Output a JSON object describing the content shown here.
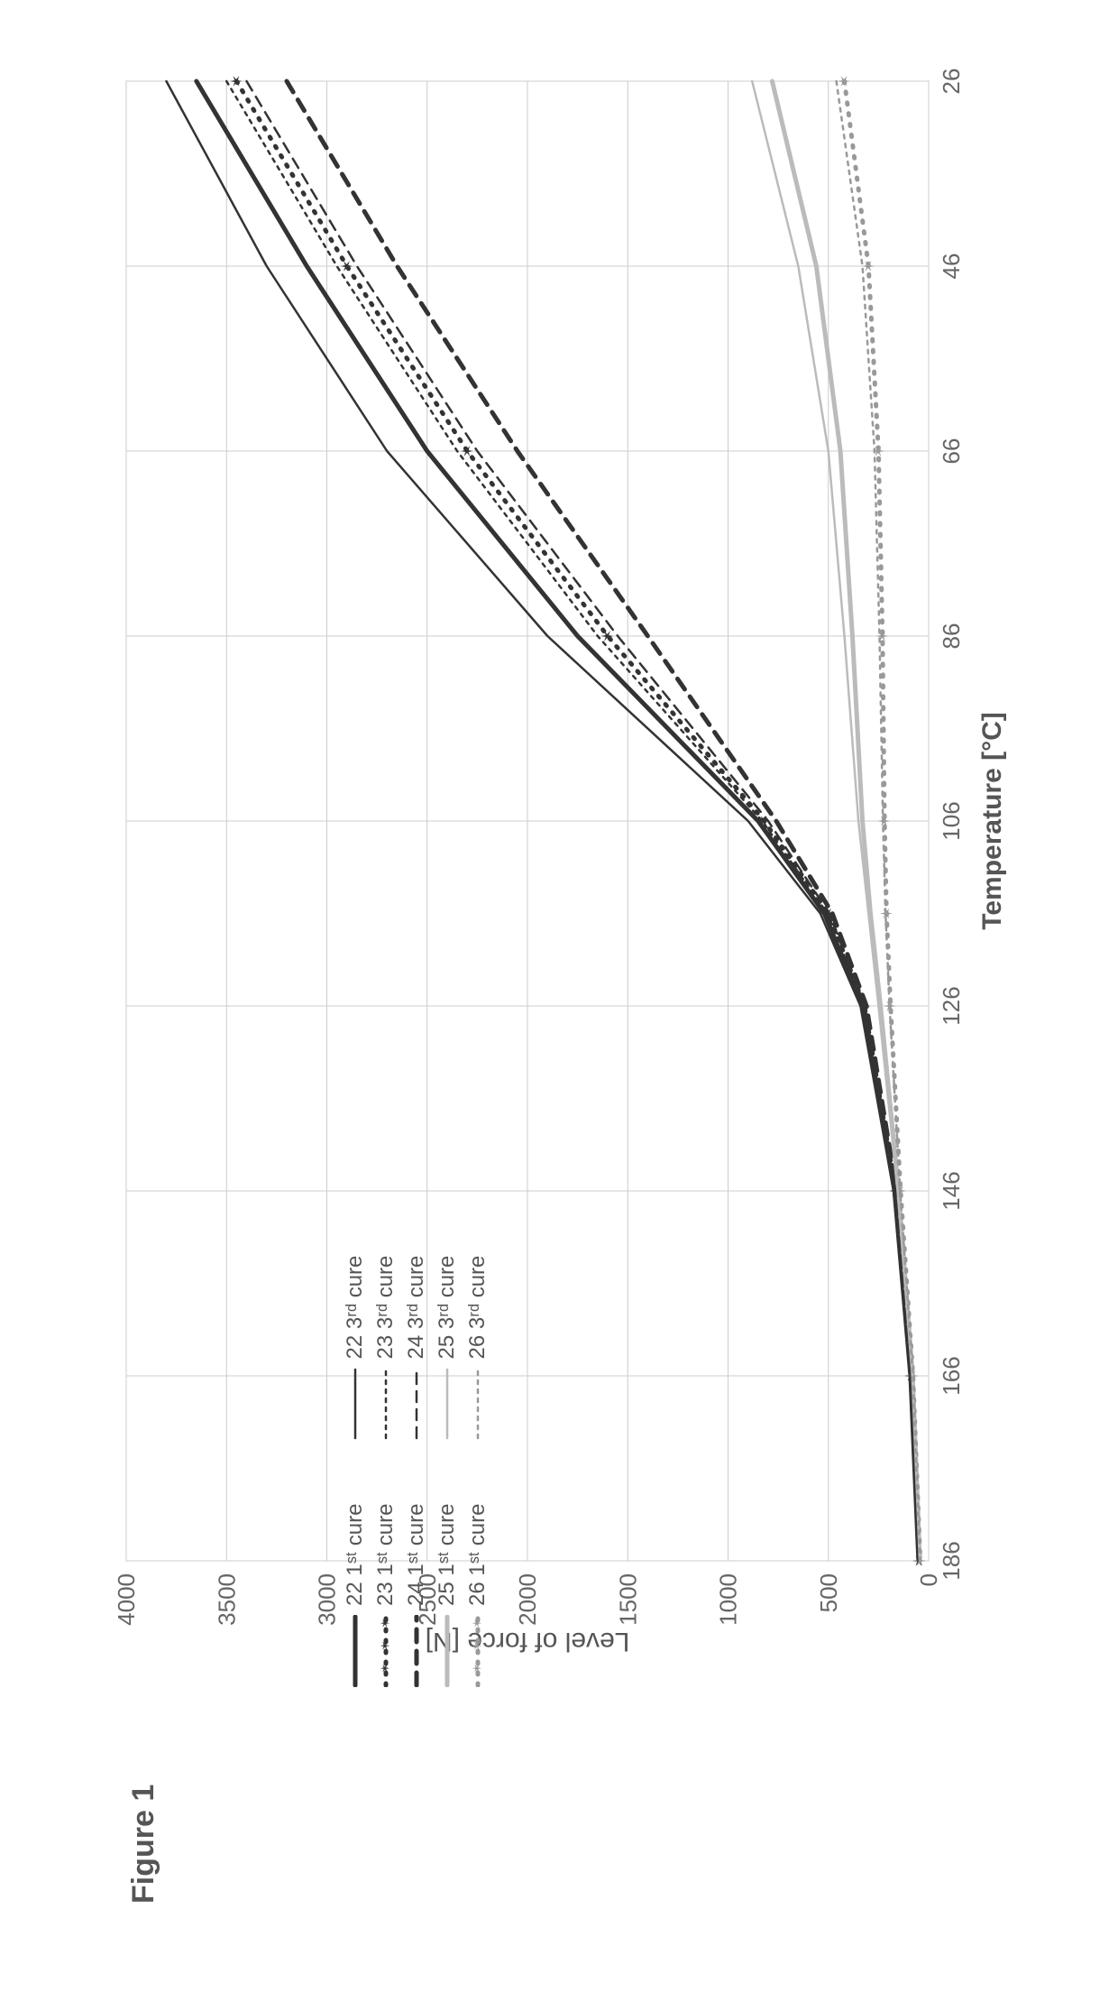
{
  "figure_label": "Figure 1",
  "chart": {
    "type": "line",
    "x_label": "Temperature [°C]",
    "y_label": "Level of force [N]",
    "x_min": 26,
    "x_max": 186,
    "x_ticks": [
      26,
      46,
      66,
      86,
      106,
      126,
      146,
      166,
      186
    ],
    "y_min": 0,
    "y_max": 4000,
    "y_ticks": [
      0,
      500,
      1000,
      1500,
      2000,
      2500,
      3000,
      3500,
      4000
    ],
    "background_color": "#ffffff",
    "plot_area_fill": "#ffffff",
    "grid_color": "#cccccc",
    "grid_width": 1,
    "axis_color": "#999999",
    "tick_font_size": 26,
    "label_font_size": 30,
    "line_width_thick": 5,
    "line_width_thin": 2.5,
    "curves": {
      "s22_1st": {
        "label": "22 1ˢᵗ cure",
        "color": "#333333",
        "width": 5,
        "dash": null,
        "points": [
          [
            26,
            3650
          ],
          [
            46,
            3100
          ],
          [
            66,
            2500
          ],
          [
            86,
            1750
          ],
          [
            106,
            850
          ],
          [
            116,
            520
          ],
          [
            126,
            330
          ],
          [
            146,
            170
          ],
          [
            166,
            90
          ],
          [
            186,
            50
          ]
        ]
      },
      "s23_1st": {
        "label": "23 1ˢᵗ cure",
        "color": "#333333",
        "width": 5,
        "dash": "2,10",
        "marker": "star",
        "points": [
          [
            26,
            3450
          ],
          [
            46,
            2900
          ],
          [
            66,
            2300
          ],
          [
            86,
            1600
          ],
          [
            106,
            820
          ],
          [
            116,
            500
          ],
          [
            126,
            320
          ],
          [
            146,
            165
          ],
          [
            166,
            88
          ],
          [
            186,
            48
          ]
        ]
      },
      "s24_1st": {
        "label": "24 1ˢᵗ cure",
        "color": "#333333",
        "width": 5,
        "dash": "14,10",
        "points": [
          [
            26,
            3200
          ],
          [
            46,
            2650
          ],
          [
            66,
            2050
          ],
          [
            86,
            1400
          ],
          [
            106,
            760
          ],
          [
            116,
            480
          ],
          [
            126,
            310
          ],
          [
            146,
            160
          ],
          [
            166,
            85
          ],
          [
            186,
            46
          ]
        ]
      },
      "s25_1st": {
        "label": "25 1ˢᵗ cure",
        "color": "#bbbbbb",
        "width": 5,
        "dash": null,
        "points": [
          [
            26,
            780
          ],
          [
            46,
            560
          ],
          [
            66,
            440
          ],
          [
            86,
            380
          ],
          [
            106,
            330
          ],
          [
            116,
            290
          ],
          [
            126,
            240
          ],
          [
            146,
            150
          ],
          [
            166,
            80
          ],
          [
            186,
            44
          ]
        ]
      },
      "s26_1st": {
        "label": "26 1ˢᵗ cure",
        "color": "#999999",
        "width": 5,
        "dash": "2,10",
        "marker": "star",
        "points": [
          [
            26,
            420
          ],
          [
            46,
            300
          ],
          [
            66,
            250
          ],
          [
            86,
            230
          ],
          [
            106,
            220
          ],
          [
            116,
            210
          ],
          [
            126,
            190
          ],
          [
            146,
            140
          ],
          [
            166,
            78
          ],
          [
            186,
            42
          ]
        ]
      },
      "s22_3rd": {
        "label": "22 3ʳᵈ cure",
        "color": "#333333",
        "width": 2.5,
        "dash": null,
        "points": [
          [
            26,
            3800
          ],
          [
            46,
            3300
          ],
          [
            66,
            2700
          ],
          [
            86,
            1900
          ],
          [
            106,
            900
          ],
          [
            116,
            540
          ],
          [
            126,
            340
          ],
          [
            146,
            175
          ],
          [
            166,
            92
          ],
          [
            186,
            52
          ]
        ]
      },
      "s23_3rd": {
        "label": "23 3ʳᵈ cure",
        "color": "#333333",
        "width": 2.5,
        "dash": "4,6",
        "points": [
          [
            26,
            3500
          ],
          [
            46,
            2950
          ],
          [
            66,
            2350
          ],
          [
            86,
            1650
          ],
          [
            106,
            830
          ],
          [
            116,
            505
          ],
          [
            126,
            322
          ],
          [
            146,
            166
          ],
          [
            166,
            89
          ],
          [
            186,
            49
          ]
        ]
      },
      "s24_3rd": {
        "label": "24 3ʳᵈ cure",
        "color": "#333333",
        "width": 2.5,
        "dash": "12,8",
        "points": [
          [
            26,
            3400
          ],
          [
            46,
            2850
          ],
          [
            66,
            2250
          ],
          [
            86,
            1550
          ],
          [
            106,
            800
          ],
          [
            116,
            495
          ],
          [
            126,
            318
          ],
          [
            146,
            163
          ],
          [
            166,
            87
          ],
          [
            186,
            47
          ]
        ]
      },
      "s25_3rd": {
        "label": "25 3ʳᵈ cure",
        "color": "#bbbbbb",
        "width": 2.5,
        "dash": null,
        "points": [
          [
            26,
            880
          ],
          [
            46,
            650
          ],
          [
            66,
            500
          ],
          [
            86,
            420
          ],
          [
            106,
            350
          ],
          [
            116,
            300
          ],
          [
            126,
            250
          ],
          [
            146,
            155
          ],
          [
            166,
            82
          ],
          [
            186,
            45
          ]
        ]
      },
      "s26_3rd": {
        "label": "26 3ʳᵈ cure",
        "color": "#999999",
        "width": 2.5,
        "dash": "4,6",
        "points": [
          [
            26,
            460
          ],
          [
            46,
            330
          ],
          [
            66,
            270
          ],
          [
            86,
            245
          ],
          [
            106,
            228
          ],
          [
            116,
            215
          ],
          [
            126,
            195
          ],
          [
            146,
            142
          ],
          [
            166,
            79
          ],
          [
            186,
            43
          ]
        ]
      }
    },
    "legend_order_col1": [
      "s22_1st",
      "s23_1st",
      "s24_1st",
      "s25_1st",
      "s26_1st"
    ],
    "legend_order_col2": [
      "s22_3rd",
      "s23_3rd",
      "s24_3rd",
      "s25_3rd",
      "s26_3rd"
    ]
  }
}
